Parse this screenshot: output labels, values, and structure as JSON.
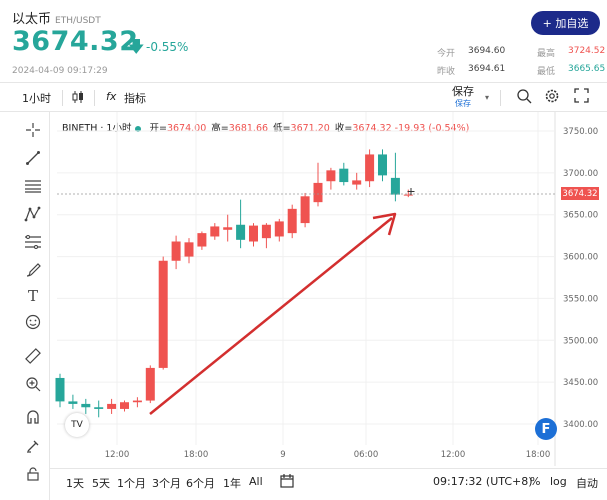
{
  "header": {
    "title": "以太币",
    "pair": "ETH/USDT",
    "price": "3674.32",
    "arrow": "🡇",
    "change": "-0.55%",
    "datetime": "2024-04-09 09:17:29",
    "add_button": "+ 加自选",
    "stats": {
      "open_label": "今开",
      "open_value": "3694.60",
      "high_label": "最高",
      "high_value": "3724.52",
      "prev_label": "昨收",
      "prev_value": "3694.61",
      "low_label": "最低",
      "low_value": "3665.65"
    }
  },
  "toolbar": {
    "interval": "1小时",
    "indicators": "指标",
    "save": "保存",
    "save_sub": "保存",
    "fx": "fx"
  },
  "legend": {
    "symbol": "BINETH · 1小时",
    "open_label": "开=",
    "open_value": "3674.00",
    "high_label": "高=",
    "high_value": "3681.66",
    "low_label": "低=",
    "low_value": "3671.20",
    "close_label": "收=",
    "close_value": "3674.32",
    "change_value": "-19.93 (-0.54%)"
  },
  "current_price_tag": "3674.32",
  "bottom_bar": {
    "ranges": [
      "1天",
      "5天",
      "1个月",
      "3个月",
      "6个月",
      "1年",
      "All"
    ],
    "clock": "09:17:32 (UTC+8)",
    "percent": "%",
    "log": "log",
    "auto": "自动"
  },
  "watermark": "TV",
  "brand_logo": "F",
  "chart_data": {
    "type": "candlestick",
    "yticks": [
      3400,
      3450,
      3500,
      3550,
      3600,
      3650,
      3700,
      3750
    ],
    "ylim": [
      3380,
      3760
    ],
    "xticks": [
      "12:00",
      "18:00",
      "9",
      "06:00",
      "12:00",
      "18:00"
    ],
    "candles": [
      {
        "o": 3455,
        "h": 3460,
        "l": 3420,
        "c": 3427
      },
      {
        "o": 3427,
        "h": 3435,
        "l": 3418,
        "c": 3424
      },
      {
        "o": 3424,
        "h": 3430,
        "l": 3412,
        "c": 3420
      },
      {
        "o": 3420,
        "h": 3428,
        "l": 3408,
        "c": 3418
      },
      {
        "o": 3418,
        "h": 3430,
        "l": 3412,
        "c": 3424
      },
      {
        "o": 3418,
        "h": 3428,
        "l": 3415,
        "c": 3426
      },
      {
        "o": 3426,
        "h": 3432,
        "l": 3420,
        "c": 3428
      },
      {
        "o": 3428,
        "h": 3470,
        "l": 3425,
        "c": 3467
      },
      {
        "o": 3467,
        "h": 3600,
        "l": 3465,
        "c": 3595
      },
      {
        "o": 3595,
        "h": 3625,
        "l": 3585,
        "c": 3618
      },
      {
        "o": 3600,
        "h": 3622,
        "l": 3592,
        "c": 3617
      },
      {
        "o": 3612,
        "h": 3630,
        "l": 3608,
        "c": 3628
      },
      {
        "o": 3624,
        "h": 3640,
        "l": 3620,
        "c": 3636
      },
      {
        "o": 3632,
        "h": 3650,
        "l": 3618,
        "c": 3635
      },
      {
        "o": 3638,
        "h": 3668,
        "l": 3610,
        "c": 3620
      },
      {
        "o": 3618,
        "h": 3640,
        "l": 3612,
        "c": 3637
      },
      {
        "o": 3622,
        "h": 3640,
        "l": 3610,
        "c": 3638
      },
      {
        "o": 3624,
        "h": 3645,
        "l": 3618,
        "c": 3642
      },
      {
        "o": 3628,
        "h": 3662,
        "l": 3622,
        "c": 3657
      },
      {
        "o": 3640,
        "h": 3676,
        "l": 3635,
        "c": 3672
      },
      {
        "o": 3665,
        "h": 3712,
        "l": 3660,
        "c": 3688
      },
      {
        "o": 3690,
        "h": 3706,
        "l": 3680,
        "c": 3703
      },
      {
        "o": 3705,
        "h": 3712,
        "l": 3685,
        "c": 3689
      },
      {
        "o": 3686,
        "h": 3700,
        "l": 3680,
        "c": 3691
      },
      {
        "o": 3690,
        "h": 3728,
        "l": 3683,
        "c": 3722
      },
      {
        "o": 3722,
        "h": 3728,
        "l": 3690,
        "c": 3697
      },
      {
        "o": 3694,
        "h": 3724,
        "l": 3666,
        "c": 3674
      },
      {
        "o": 3674,
        "h": 3680,
        "l": 3671,
        "c": 3674
      }
    ]
  },
  "colors": {
    "up": "#ef5350",
    "down": "#26a69a",
    "accent": "#1c2a8a",
    "annotation": "#d32f2f"
  }
}
